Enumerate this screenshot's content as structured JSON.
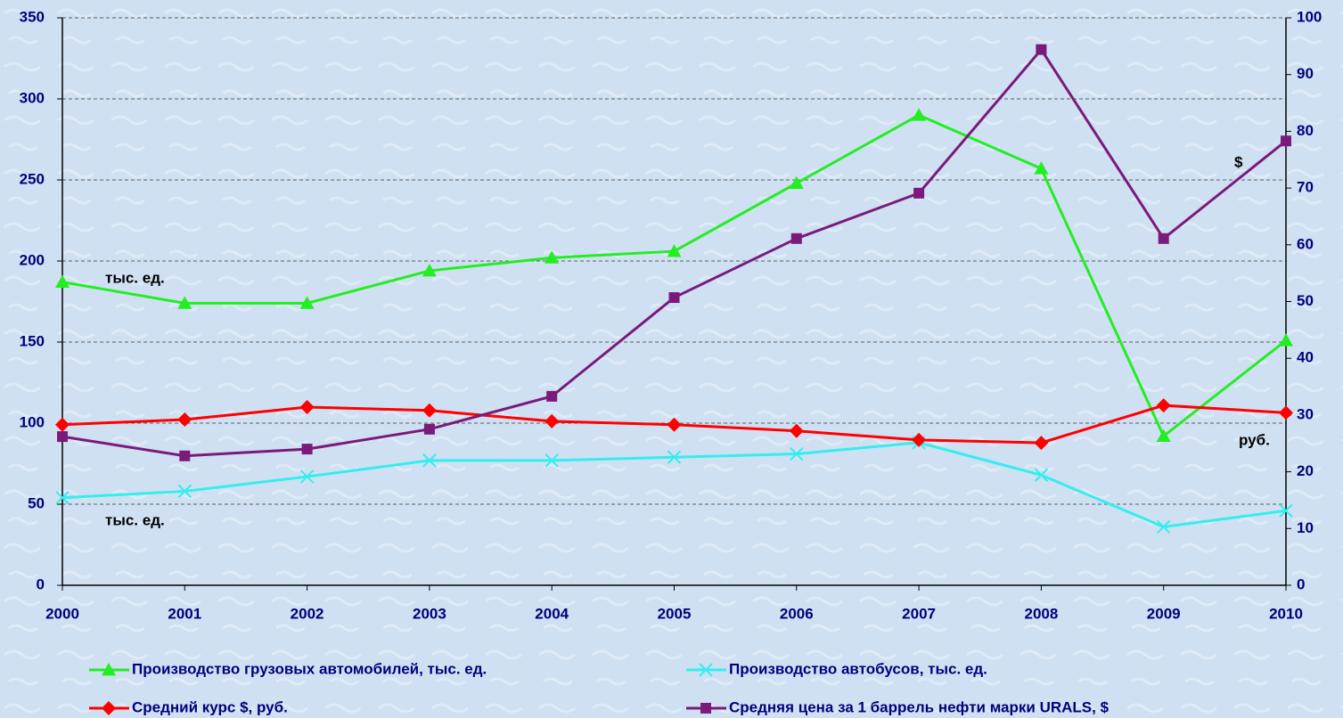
{
  "chart_data": {
    "type": "line",
    "x": [
      2000,
      2001,
      2002,
      2003,
      2004,
      2005,
      2006,
      2007,
      2008,
      2009,
      2010
    ],
    "xlim": [
      2000,
      2010
    ],
    "xticks": [
      2000,
      2001,
      2002,
      2003,
      2004,
      2005,
      2006,
      2007,
      2008,
      2009,
      2010
    ],
    "ylim": [
      0,
      350
    ],
    "yticks": [
      0,
      50,
      100,
      150,
      200,
      250,
      300,
      350
    ],
    "y2lim": [
      0,
      100
    ],
    "y2ticks": [
      0,
      10,
      20,
      30,
      40,
      50,
      60,
      70,
      80,
      90,
      100
    ],
    "grid": true,
    "series": [
      {
        "name": "Производство грузовых автомобилей, тыс. ед.",
        "color": "#22ee22",
        "marker": "triangle",
        "values": [
          187,
          174,
          174,
          194,
          202,
          206,
          248,
          290,
          257,
          92,
          151
        ]
      },
      {
        "name": "Производство автобусов, тыс. ед.",
        "color": "#33eeee",
        "marker": "x",
        "values": [
          54,
          58,
          67,
          77,
          77,
          79,
          81,
          88,
          68,
          36,
          46
        ]
      },
      {
        "name": "Средний курс $, руб.",
        "color": "#ff0000",
        "marker": "diamond",
        "axis": "y2",
        "values": [
          28.3,
          29.2,
          31.4,
          30.8,
          28.9,
          28.3,
          27.2,
          25.6,
          25.1,
          31.7,
          30.4
        ]
      },
      {
        "name": "Средняя цена за 1 баррель нефти марки URALS, $",
        "color": "#7a1a7a",
        "marker": "square",
        "axis": "y2",
        "values": [
          26.2,
          22.8,
          24.0,
          27.5,
          33.3,
          50.7,
          61.1,
          69.1,
          94.4,
          61.1,
          78.3
        ]
      }
    ],
    "annotations": [
      "тыс. ед.",
      "тыс. ед.",
      "$",
      "руб."
    ]
  }
}
